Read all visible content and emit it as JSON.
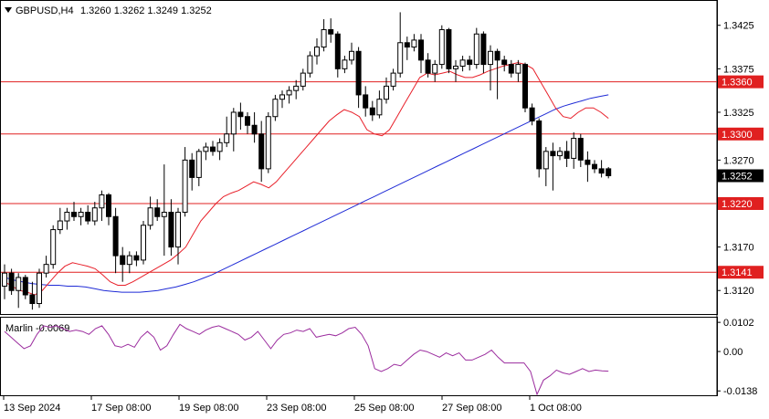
{
  "chart_title": {
    "symbol": "GBPUSD,H4",
    "ohlc": "1.3260 1.3262 1.3249 1.3252"
  },
  "indicator_label": "Marlin -0.0069",
  "colors": {
    "candle_up": "#ffffff",
    "candle_down": "#000000",
    "ma_fast": "#e8202a",
    "ma_slow": "#1f2bd6",
    "marlin": "#9b2c9e",
    "level": "#e02020",
    "level_tag_bg": "#e02020",
    "price_tag_bg": "#000000"
  },
  "chart_data": {
    "type": "candlestick",
    "x_tick_labels": [
      "13 Sep 2024",
      "17 Sep 08:00",
      "19 Sep 08:00",
      "23 Sep 08:00",
      "25 Sep 08:00",
      "27 Sep 08:00",
      "1 Oct 08:00"
    ],
    "y_tick_labels": [
      "1.3425",
      "1.3375",
      "1.3325",
      "1.3270",
      "1.3220",
      "1.3170",
      "1.3120"
    ],
    "ylim": [
      1.3094,
      1.3452
    ],
    "current_price": "1.3252",
    "levels": [
      {
        "value": 1.336,
        "label": "1.3360"
      },
      {
        "value": 1.33,
        "label": "1.3300"
      },
      {
        "value": 1.322,
        "label": "1.3220"
      },
      {
        "value": 1.3141,
        "label": "1.3141"
      }
    ],
    "candles": [
      [
        1.3125,
        1.315,
        1.311,
        1.314
      ],
      [
        1.314,
        1.3145,
        1.3115,
        1.312
      ],
      [
        1.312,
        1.314,
        1.31,
        1.3135
      ],
      [
        1.3135,
        1.3138,
        1.311,
        1.3115
      ],
      [
        1.3115,
        1.313,
        1.3098,
        1.3105
      ],
      [
        1.3105,
        1.3145,
        1.31,
        1.314
      ],
      [
        1.314,
        1.316,
        1.3135,
        1.315
      ],
      [
        1.315,
        1.3195,
        1.3145,
        1.319
      ],
      [
        1.319,
        1.3215,
        1.3185,
        1.32
      ],
      [
        1.32,
        1.3215,
        1.319,
        1.321
      ],
      [
        1.321,
        1.3222,
        1.32,
        1.3205
      ],
      [
        1.3205,
        1.3215,
        1.3195,
        1.321
      ],
      [
        1.321,
        1.3218,
        1.3196,
        1.32
      ],
      [
        1.32,
        1.3222,
        1.3195,
        1.3215
      ],
      [
        1.3215,
        1.3235,
        1.32,
        1.323
      ],
      [
        1.323,
        1.3232,
        1.3195,
        1.3205
      ],
      [
        1.3205,
        1.3215,
        1.314,
        1.316
      ],
      [
        1.316,
        1.317,
        1.313,
        1.315
      ],
      [
        1.315,
        1.3165,
        1.314,
        1.316
      ],
      [
        1.316,
        1.3165,
        1.3148,
        1.3155
      ],
      [
        1.3155,
        1.32,
        1.315,
        1.3195
      ],
      [
        1.3195,
        1.3228,
        1.319,
        1.3215
      ],
      [
        1.3215,
        1.3225,
        1.32,
        1.3205
      ],
      [
        1.3205,
        1.3265,
        1.316,
        1.321
      ],
      [
        1.321,
        1.3225,
        1.316,
        1.317
      ],
      [
        1.317,
        1.3215,
        1.315,
        1.321
      ],
      [
        1.321,
        1.3285,
        1.3205,
        1.327
      ],
      [
        1.327,
        1.3278,
        1.3235,
        1.325
      ],
      [
        1.325,
        1.3283,
        1.324,
        1.328
      ],
      [
        1.328,
        1.329,
        1.327,
        1.3285
      ],
      [
        1.3285,
        1.3292,
        1.3275,
        1.328
      ],
      [
        1.328,
        1.3295,
        1.327,
        1.329
      ],
      [
        1.329,
        1.332,
        1.3285,
        1.33
      ],
      [
        1.33,
        1.333,
        1.328,
        1.3325
      ],
      [
        1.3325,
        1.3336,
        1.3305,
        1.332
      ],
      [
        1.332,
        1.3325,
        1.33,
        1.331
      ],
      [
        1.331,
        1.3325,
        1.329,
        1.33
      ],
      [
        1.33,
        1.3315,
        1.3245,
        1.326
      ],
      [
        1.326,
        1.3325,
        1.3255,
        1.332
      ],
      [
        1.332,
        1.3345,
        1.3315,
        1.334
      ],
      [
        1.334,
        1.335,
        1.333,
        1.3345
      ],
      [
        1.3345,
        1.3355,
        1.3335,
        1.335
      ],
      [
        1.335,
        1.3362,
        1.334,
        1.3355
      ],
      [
        1.3355,
        1.3375,
        1.335,
        1.337
      ],
      [
        1.337,
        1.3395,
        1.3365,
        1.339
      ],
      [
        1.339,
        1.341,
        1.338,
        1.34
      ],
      [
        1.34,
        1.3432,
        1.3395,
        1.342
      ],
      [
        1.342,
        1.3433,
        1.3405,
        1.3415
      ],
      [
        1.3415,
        1.3418,
        1.3365,
        1.3375
      ],
      [
        1.3375,
        1.339,
        1.337,
        1.3385
      ],
      [
        1.3385,
        1.3405,
        1.338,
        1.3395
      ],
      [
        1.3395,
        1.34,
        1.333,
        1.3345
      ],
      [
        1.3345,
        1.3355,
        1.332,
        1.333
      ],
      [
        1.333,
        1.3338,
        1.3315,
        1.3322
      ],
      [
        1.3322,
        1.335,
        1.3318,
        1.334
      ],
      [
        1.334,
        1.3365,
        1.3335,
        1.3355
      ],
      [
        1.3355,
        1.3375,
        1.335,
        1.337
      ],
      [
        1.337,
        1.344,
        1.3365,
        1.3405
      ],
      [
        1.3405,
        1.3412,
        1.3385,
        1.34
      ],
      [
        1.34,
        1.3415,
        1.3395,
        1.3408
      ],
      [
        1.3408,
        1.3415,
        1.337,
        1.3385
      ],
      [
        1.3385,
        1.3393,
        1.3365,
        1.337
      ],
      [
        1.337,
        1.3385,
        1.336,
        1.338
      ],
      [
        1.338,
        1.3425,
        1.3375,
        1.342
      ],
      [
        1.342,
        1.3422,
        1.337,
        1.3375
      ],
      [
        1.3375,
        1.3385,
        1.336,
        1.3378
      ],
      [
        1.3378,
        1.339,
        1.3372,
        1.3385
      ],
      [
        1.3385,
        1.339,
        1.3373,
        1.338
      ],
      [
        1.338,
        1.3422,
        1.3375,
        1.3415
      ],
      [
        1.3415,
        1.3418,
        1.337,
        1.338
      ],
      [
        1.338,
        1.3402,
        1.335,
        1.3395
      ],
      [
        1.3395,
        1.3398,
        1.334,
        1.3385
      ],
      [
        1.3385,
        1.339,
        1.3372,
        1.338
      ],
      [
        1.338,
        1.3385,
        1.3365,
        1.337
      ],
      [
        1.337,
        1.3385,
        1.336,
        1.338
      ],
      [
        1.338,
        1.3382,
        1.3325,
        1.333
      ],
      [
        1.333,
        1.3335,
        1.331,
        1.3315
      ],
      [
        1.3315,
        1.3318,
        1.325,
        1.326
      ],
      [
        1.326,
        1.3285,
        1.324,
        1.328
      ],
      [
        1.328,
        1.329,
        1.3235,
        1.3275
      ],
      [
        1.3275,
        1.3285,
        1.327,
        1.328
      ],
      [
        1.328,
        1.3292,
        1.3262,
        1.3272
      ],
      [
        1.3272,
        1.3302,
        1.326,
        1.3295
      ],
      [
        1.3295,
        1.33,
        1.3262,
        1.327
      ],
      [
        1.327,
        1.328,
        1.3245,
        1.3265
      ],
      [
        1.3265,
        1.327,
        1.3255,
        1.326
      ],
      [
        1.326,
        1.327,
        1.325,
        1.3255
      ],
      [
        1.326,
        1.3262,
        1.3249,
        1.3252
      ]
    ],
    "ma_fast": [
      1.313,
      1.3125,
      1.312,
      1.3118,
      1.3115,
      1.312,
      1.313,
      1.314,
      1.3148,
      1.3152,
      1.315,
      1.3148,
      1.3145,
      1.3138,
      1.313,
      1.3126,
      1.3126,
      1.313,
      1.3135,
      1.314,
      1.3145,
      1.315,
      1.3155,
      1.3162,
      1.317,
      1.3185,
      1.32,
      1.321,
      1.322,
      1.3228,
      1.3232,
      1.3235,
      1.324,
      1.3245,
      1.3242,
      1.3238,
      1.3245,
      1.3255,
      1.3265,
      1.3275,
      1.3285,
      1.3295,
      1.3305,
      1.3315,
      1.3322,
      1.3328,
      1.3325,
      1.332,
      1.3305,
      1.33,
      1.3298,
      1.3305,
      1.332,
      1.3335,
      1.335,
      1.3365,
      1.337,
      1.3368,
      1.337,
      1.3372,
      1.3368,
      1.3365,
      1.3365,
      1.3368,
      1.3372,
      1.3375,
      1.3378,
      1.338,
      1.3382,
      1.338,
      1.3375,
      1.336,
      1.3345,
      1.333,
      1.332,
      1.3318,
      1.3325,
      1.333,
      1.333,
      1.3325,
      1.3318
    ],
    "ma_slow": [
      1.3135,
      1.3132,
      1.313,
      1.3128,
      1.3127,
      1.3126,
      1.3126,
      1.3125,
      1.3125,
      1.3124,
      1.3122,
      1.312,
      1.3119,
      1.3118,
      1.3118,
      1.3118,
      1.3119,
      1.312,
      1.3122,
      1.3124,
      1.3127,
      1.313,
      1.3134,
      1.3138,
      1.3143,
      1.3148,
      1.3153,
      1.3158,
      1.3163,
      1.3168,
      1.3173,
      1.3178,
      1.3183,
      1.3188,
      1.3193,
      1.3198,
      1.3203,
      1.3208,
      1.3213,
      1.3218,
      1.3223,
      1.3228,
      1.3233,
      1.3238,
      1.3243,
      1.3248,
      1.3253,
      1.3258,
      1.3263,
      1.3268,
      1.3273,
      1.3278,
      1.3283,
      1.3288,
      1.3293,
      1.3298,
      1.3303,
      1.3308,
      1.3313,
      1.3318,
      1.3323,
      1.3328,
      1.3332,
      1.3335,
      1.3338,
      1.3341,
      1.3343,
      1.3345
    ],
    "marlin": {
      "ylim": [
        -0.015,
        0.0112
      ],
      "y_tick_labels": [
        "0.0102",
        "0.00",
        "-0.0138"
      ],
      "values": [
        0.007,
        0.005,
        0.003,
        0.001,
        0.002,
        0.006,
        0.009,
        0.0085,
        0.009,
        0.008,
        0.007,
        0.0075,
        0.007,
        0.006,
        0.008,
        0.009,
        0.006,
        0.002,
        0.0015,
        0.0025,
        0.0015,
        0.005,
        0.007,
        0.005,
        0.0005,
        0.002,
        0.006,
        0.0095,
        0.008,
        0.007,
        0.006,
        0.0075,
        0.0085,
        0.009,
        0.008,
        0.007,
        0.006,
        0.004,
        0.005,
        0.007,
        0.004,
        0.001,
        0.004,
        0.006,
        0.0065,
        0.0075,
        0.007,
        0.008,
        0.005,
        0.0055,
        0.006,
        0.0055,
        0.0065,
        0.008,
        0.0085,
        0.006,
        0.002,
        -0.006,
        -0.007,
        -0.006,
        -0.0045,
        -0.005,
        -0.003,
        -0.001,
        0.0005,
        0.0,
        -0.001,
        -0.002,
        -0.0005,
        -0.0015,
        -0.0005,
        -0.003,
        -0.003,
        -0.002,
        -0.001,
        0.0005,
        -0.002,
        -0.004,
        -0.004,
        -0.004,
        -0.004,
        -0.007,
        -0.015,
        -0.01,
        -0.0085,
        -0.0065,
        -0.0075,
        -0.008,
        -0.007,
        -0.006,
        -0.007,
        -0.0065,
        -0.0068,
        -0.0069
      ]
    }
  }
}
